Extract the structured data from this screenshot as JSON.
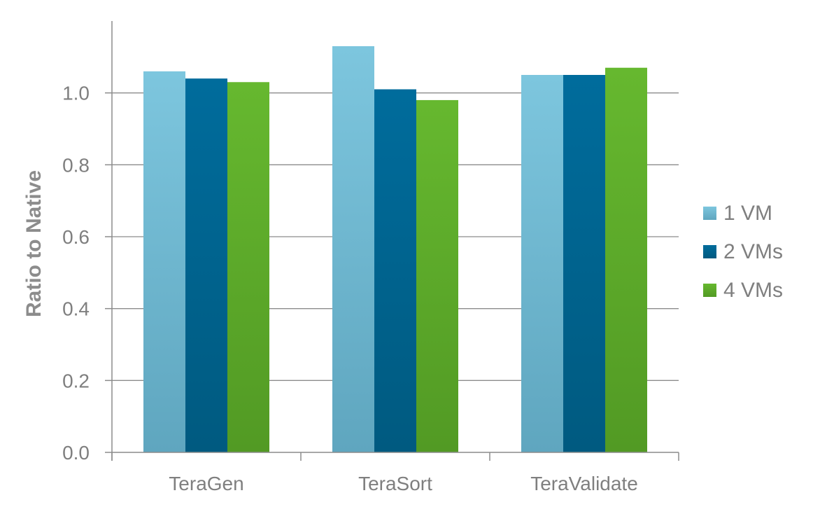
{
  "chart_data": {
    "type": "bar",
    "title": "",
    "xlabel": "",
    "ylabel": "Ratio to Native",
    "ylim": [
      0,
      1.2
    ],
    "yticks": [
      "0.0",
      "0.2",
      "0.4",
      "0.6",
      "0.8",
      "1.0"
    ],
    "categories": [
      "TeraGen",
      "TeraSort",
      "TeraValidate"
    ],
    "series": [
      {
        "name": "1 VM",
        "values": [
          1.06,
          1.13,
          1.05
        ],
        "color": "#7dc6de"
      },
      {
        "name": "2 VMs",
        "values": [
          1.04,
          1.01,
          1.05
        ],
        "color": "#006c9c"
      },
      {
        "name": "4 VMs",
        "values": [
          1.03,
          0.98,
          1.07
        ],
        "color": "#62b32f"
      }
    ],
    "grid": true,
    "legend": "right"
  }
}
